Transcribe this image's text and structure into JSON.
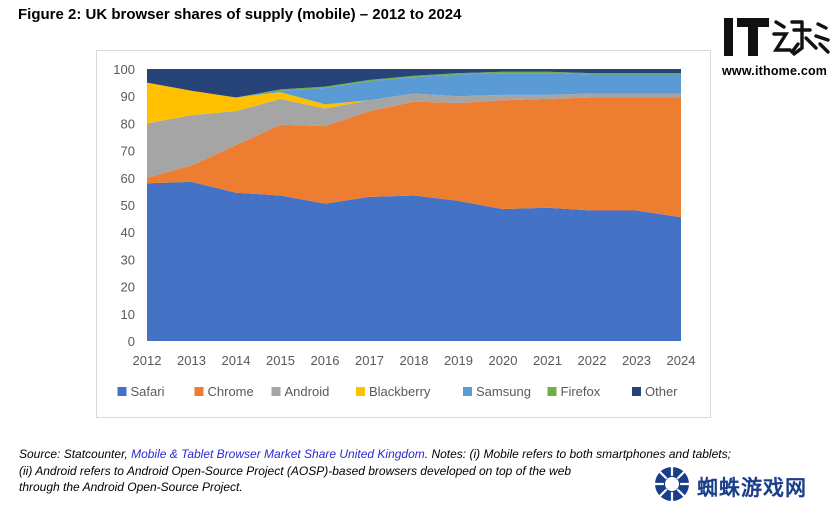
{
  "figure_title": "Figure 2: UK browser shares of supply (mobile) – 2012 to 2024",
  "source": {
    "prefix": "Source: Statcounter, ",
    "link_text": "Mobile & Tablet Browser Market Share United Kingdom",
    "line1_suffix": ". Notes: (i) Mobile refers to both smartphones and tablets;",
    "line2": "(ii) Android refers to Android Open-Source Project (AOSP)-based browsers developed on top of the web",
    "line3": "through the Android Open-Source Project."
  },
  "watermarks": {
    "ithome_logo_text": "IT之家",
    "ithome_url": "www.ithome.com",
    "spider_text": "蜘蛛游戏网"
  },
  "chart_data": {
    "type": "area",
    "stacked": true,
    "title": "",
    "xlabel": "",
    "ylabel": "",
    "x": [
      "2012",
      "2013",
      "2014",
      "2015",
      "2016",
      "2017",
      "2018",
      "2019",
      "2020",
      "2021",
      "2022",
      "2023",
      "2024"
    ],
    "ylim": [
      0,
      100
    ],
    "yticks": [
      "0",
      "10",
      "20",
      "30",
      "40",
      "50",
      "60",
      "70",
      "80",
      "90",
      "100"
    ],
    "grid": false,
    "legend_position": "bottom",
    "series": [
      {
        "name": "Safari",
        "color": "#4472c4",
        "values": [
          58,
          58.5,
          54.5,
          53.5,
          50.5,
          53,
          53.5,
          51.5,
          48.5,
          49,
          48,
          48,
          45.5
        ]
      },
      {
        "name": "Chrome",
        "color": "#ed7d31",
        "values": [
          2,
          6,
          17.5,
          26,
          28.5,
          31.5,
          34.5,
          36,
          40,
          40,
          41.5,
          41.5,
          44
        ]
      },
      {
        "name": "Android",
        "color": "#a5a5a5",
        "values": [
          20,
          18.5,
          12.5,
          9.5,
          6.5,
          4,
          3,
          2.5,
          2,
          1.5,
          1.5,
          1.5,
          1.5
        ]
      },
      {
        "name": "Blackberry",
        "color": "#ffc000",
        "values": [
          15,
          9,
          5,
          2.5,
          1.5,
          0,
          0,
          0,
          0,
          0,
          0,
          0,
          0
        ]
      },
      {
        "name": "Samsung",
        "color": "#5b9bd5",
        "values": [
          0,
          0,
          0,
          0.5,
          6,
          7,
          6,
          8,
          8,
          8,
          7,
          7,
          7
        ]
      },
      {
        "name": "Firefox",
        "color": "#70ad47",
        "values": [
          0,
          0,
          0,
          0.5,
          0.5,
          0.5,
          0.5,
          0.5,
          0.5,
          0.5,
          0.5,
          0.5,
          0.5
        ]
      },
      {
        "name": "Other",
        "color": "#264478",
        "values": [
          5,
          8,
          10.5,
          7.5,
          6.5,
          4,
          2.5,
          1.5,
          1,
          1,
          1.5,
          1.5,
          1.5
        ]
      }
    ]
  }
}
